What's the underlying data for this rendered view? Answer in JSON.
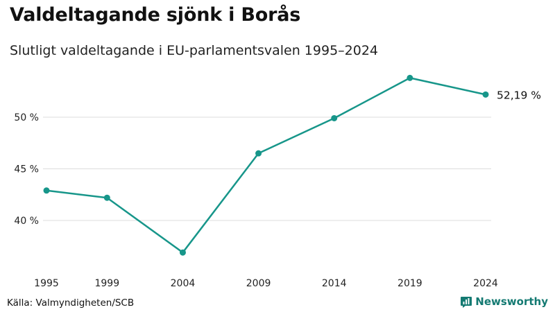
{
  "header": {
    "title": "Valdeltagande sjönk i Borås",
    "subtitle": "Slutligt valdeltagande i EU-parlamentsvalen 1995–2024"
  },
  "footer": {
    "source": "Källa: Valmyndigheten/SCB",
    "brand": "Newsworthy"
  },
  "colors": {
    "line": "#17968a",
    "grid": "#dddddd",
    "brand": "#147a72"
  },
  "icons": {
    "brand_icon": "bar-chart-speech-bubble-icon"
  },
  "chart_data": {
    "type": "line",
    "title": "Valdeltagande sjönk i Borås",
    "subtitle": "Slutligt valdeltagande i EU-parlamentsvalen 1995–2024",
    "xlabel": "",
    "ylabel": "",
    "x": [
      1995,
      1999,
      2004,
      2009,
      2014,
      2019,
      2024
    ],
    "x_tick_labels": [
      "1995",
      "1999",
      "2004",
      "2009",
      "2014",
      "2019",
      "2024"
    ],
    "series": [
      {
        "values": [
          42.9,
          42.2,
          36.9,
          46.5,
          49.9,
          53.8,
          52.19
        ]
      }
    ],
    "y_ticks": [
      40,
      45,
      50
    ],
    "y_tick_labels": [
      "40 %",
      "45 %",
      "50 %"
    ],
    "xlim": [
      1995,
      2024
    ],
    "ylim": [
      35,
      55
    ],
    "end_label": "52,19 %",
    "grid": true,
    "legend": "none"
  }
}
